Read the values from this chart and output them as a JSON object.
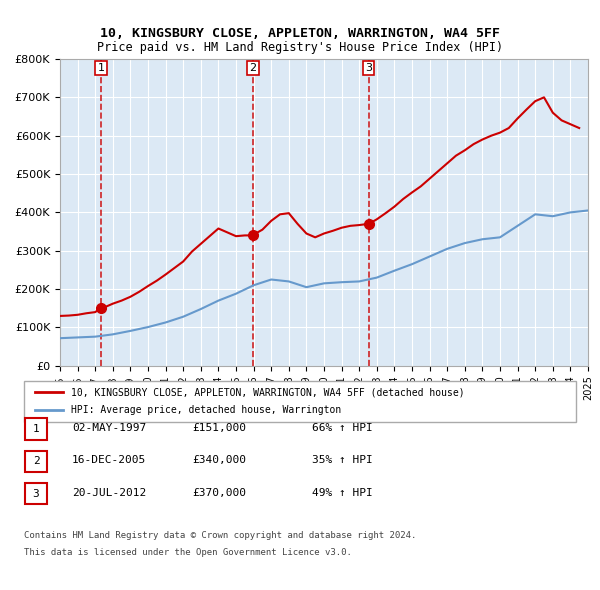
{
  "title": "10, KINGSBURY CLOSE, APPLETON, WARRINGTON, WA4 5FF",
  "subtitle": "Price paid vs. HM Land Registry's House Price Index (HPI)",
  "legend_line1": "10, KINGSBURY CLOSE, APPLETON, WARRINGTON, WA4 5FF (detached house)",
  "legend_line2": "HPI: Average price, detached house, Warrington",
  "footer1": "Contains HM Land Registry data © Crown copyright and database right 2024.",
  "footer2": "This data is licensed under the Open Government Licence v3.0.",
  "sales": [
    {
      "num": 1,
      "date": "02-MAY-1997",
      "price": 151000,
      "pct": "66%",
      "year": 1997.33
    },
    {
      "num": 2,
      "date": "16-DEC-2005",
      "price": 340000,
      "pct": "35%",
      "year": 2005.95
    },
    {
      "num": 3,
      "date": "20-JUL-2012",
      "price": 370000,
      "pct": "49%",
      "year": 2012.54
    }
  ],
  "ylim": [
    0,
    800000
  ],
  "yticks": [
    0,
    100000,
    200000,
    300000,
    400000,
    500000,
    600000,
    700000,
    800000
  ],
  "xlim": [
    1995,
    2025
  ],
  "xticks": [
    1995,
    1996,
    1997,
    1998,
    1999,
    2000,
    2001,
    2002,
    2003,
    2004,
    2005,
    2006,
    2007,
    2008,
    2009,
    2010,
    2011,
    2012,
    2013,
    2014,
    2015,
    2016,
    2017,
    2018,
    2019,
    2020,
    2021,
    2022,
    2023,
    2024,
    2025
  ],
  "red_color": "#cc0000",
  "blue_color": "#6699cc",
  "bg_color": "#dce9f5",
  "plot_bg": "#dce9f5",
  "grid_color": "#ffffff",
  "vline_color": "#cc0000",
  "marker_color": "#cc0000",
  "hpi_data_x": [
    1995,
    1996,
    1997,
    1998,
    1999,
    2000,
    2001,
    2002,
    2003,
    2004,
    2005,
    2006,
    2007,
    2008,
    2009,
    2010,
    2011,
    2012,
    2013,
    2014,
    2015,
    2016,
    2017,
    2018,
    2019,
    2020,
    2021,
    2022,
    2023,
    2024,
    2025
  ],
  "hpi_data_y": [
    72000,
    74000,
    76000,
    82000,
    91000,
    101000,
    113000,
    128000,
    148000,
    170000,
    188000,
    210000,
    225000,
    220000,
    205000,
    215000,
    218000,
    220000,
    230000,
    248000,
    265000,
    285000,
    305000,
    320000,
    330000,
    335000,
    365000,
    395000,
    390000,
    400000,
    405000
  ],
  "property_data_x": [
    1995.0,
    1995.5,
    1996.0,
    1996.5,
    1997.0,
    1997.33,
    1997.5,
    1998.0,
    1998.5,
    1999.0,
    1999.5,
    2000.0,
    2000.5,
    2001.0,
    2001.5,
    2002.0,
    2002.5,
    2003.0,
    2003.5,
    2004.0,
    2004.5,
    2005.0,
    2005.5,
    2005.95,
    2006.0,
    2006.5,
    2007.0,
    2007.5,
    2008.0,
    2008.5,
    2009.0,
    2009.5,
    2010.0,
    2010.5,
    2011.0,
    2011.5,
    2012.0,
    2012.54,
    2012.5,
    2013.0,
    2013.5,
    2014.0,
    2014.5,
    2015.0,
    2015.5,
    2016.0,
    2016.5,
    2017.0,
    2017.5,
    2018.0,
    2018.5,
    2019.0,
    2019.5,
    2020.0,
    2020.5,
    2021.0,
    2021.5,
    2022.0,
    2022.5,
    2023.0,
    2023.5,
    2024.0,
    2024.5
  ],
  "property_data_y": [
    130000,
    131000,
    133000,
    137000,
    140000,
    151000,
    152000,
    162000,
    170000,
    180000,
    193000,
    208000,
    222000,
    238000,
    255000,
    272000,
    298000,
    318000,
    338000,
    358000,
    348000,
    338000,
    340000,
    340000,
    342000,
    355000,
    378000,
    395000,
    398000,
    370000,
    345000,
    335000,
    345000,
    352000,
    360000,
    365000,
    367000,
    370000,
    370000,
    382000,
    398000,
    415000,
    435000,
    452000,
    468000,
    488000,
    508000,
    528000,
    548000,
    562000,
    578000,
    590000,
    600000,
    608000,
    620000,
    645000,
    668000,
    690000,
    700000,
    660000,
    640000,
    630000,
    620000
  ]
}
